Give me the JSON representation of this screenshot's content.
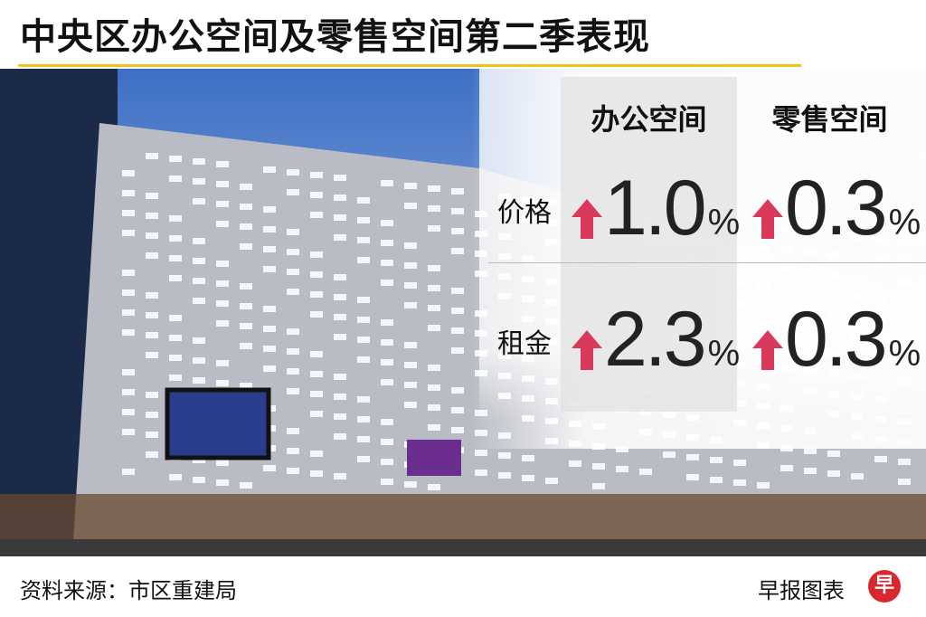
{
  "header": {
    "title": "中央区办公空间及零售空间第二季表现"
  },
  "table": {
    "columns": [
      "办公空间",
      "零售空间"
    ],
    "rows": [
      {
        "label": "价格",
        "cells": [
          {
            "value": "1.0",
            "unit": "%"
          },
          {
            "value": "0.3",
            "unit": "%"
          }
        ]
      },
      {
        "label": "租金",
        "cells": [
          {
            "value": "2.3",
            "unit": "%"
          },
          {
            "value": "0.3",
            "unit": "%"
          }
        ]
      }
    ]
  },
  "footer": {
    "source": "资料来源：市区重建局",
    "credit": "早报图表",
    "logo": "早"
  }
}
